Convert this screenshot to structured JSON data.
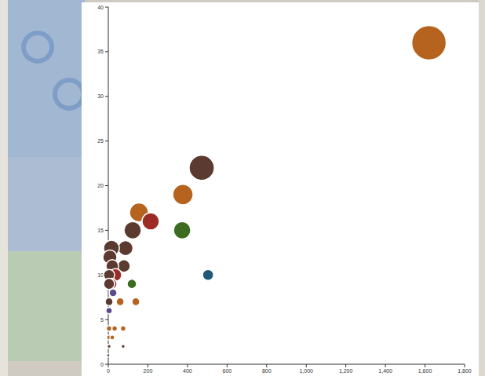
{
  "chart_data": {
    "type": "scatter",
    "x": [
      1620,
      472,
      377,
      155,
      214,
      123,
      373,
      504,
      87,
      16,
      8,
      79,
      20,
      36,
      4,
      16,
      4,
      119,
      24,
      4,
      60,
      139,
      4,
      4,
      32,
      75,
      4,
      20,
      4,
      75,
      0
    ],
    "values": [
      36,
      22,
      19,
      17,
      16,
      15,
      15,
      10,
      13,
      13,
      12,
      11,
      11,
      10,
      10,
      9,
      9,
      9,
      8,
      7,
      7,
      7,
      6,
      4,
      4,
      4,
      3,
      3,
      2,
      2,
      1
    ],
    "sizes": [
      480,
      256,
      169,
      144,
      121,
      121,
      121,
      49,
      90,
      100,
      81,
      64,
      64,
      64,
      49,
      49,
      49,
      36,
      25,
      25,
      25,
      25,
      16,
      12,
      12,
      12,
      9,
      9,
      6,
      6,
      4
    ],
    "colors": [
      "#b5631f",
      "#5b3b30",
      "#b5631f",
      "#b5631f",
      "#9c2a26",
      "#5b3b30",
      "#3c6b22",
      "#1f5879",
      "#5b3b30",
      "#5b3b30",
      "#5b3b30",
      "#5b3b30",
      "#5b3b30",
      "#9c2a26",
      "#5b3b30",
      "#9c2a26",
      "#5b3b30",
      "#3c6b22",
      "#5d4a8c",
      "#5b3b30",
      "#b5631f",
      "#b5631f",
      "#5d4a8c",
      "#b5631f",
      "#b5631f",
      "#b5631f",
      "#b5631f",
      "#b5631f",
      "#5b3b30",
      "#5b3b30",
      "#5b3b30"
    ],
    "xlim": [
      0,
      1800
    ],
    "xticks": [
      0,
      200,
      400,
      600,
      800,
      {
        "value": 1000,
        "label": "1,000"
      },
      {
        "value": 1200,
        "label": "1,200"
      },
      {
        "value": 1400,
        "label": "1,400"
      },
      {
        "value": 1600,
        "label": "1,600"
      },
      {
        "value": 1800,
        "label": "1,800"
      }
    ],
    "ylim": [
      0,
      40
    ],
    "yticks": [
      0,
      5,
      10,
      15,
      20,
      25,
      30,
      35,
      40
    ],
    "grid": false
  }
}
